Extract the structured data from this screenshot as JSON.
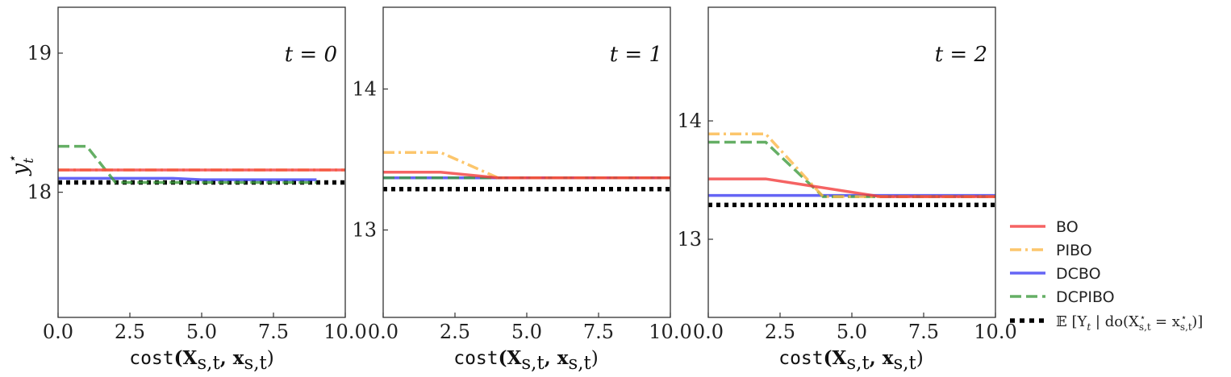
{
  "chart_data": [
    {
      "type": "line",
      "panel_label": "t = 0",
      "xlabel": "cost(X_{s,t}, x_{s,t})",
      "ylabel": "y_t^⋆",
      "xlim": [
        0,
        10
      ],
      "ylim": [
        17.1,
        19.33
      ],
      "xticks": [
        0.0,
        2.5,
        5.0,
        7.5,
        10.0
      ],
      "xtick_labels": [
        "0.0",
        "2.5",
        "5.0",
        "7.5",
        "10.0"
      ],
      "yticks": [
        18,
        19
      ],
      "ytick_labels": [
        "18",
        "19"
      ],
      "series": [
        {
          "name": "BO",
          "x": [
            0,
            10
          ],
          "y": [
            18.16,
            18.16
          ]
        },
        {
          "name": "PIBO",
          "x": [
            0,
            10
          ],
          "y": [
            18.16,
            18.16
          ]
        },
        {
          "name": "DCBO",
          "x": [
            0,
            4,
            5,
            9
          ],
          "y": [
            18.1,
            18.1,
            18.09,
            18.09
          ]
        },
        {
          "name": "DCPIBO",
          "x": [
            0,
            1,
            2,
            9
          ],
          "y": [
            18.33,
            18.33,
            18.07,
            18.07
          ]
        },
        {
          "name": "E[Y_t | do(X_{s,t}^⋆ = x_{s,t}^⋆)]",
          "x": [
            0,
            10
          ],
          "y": [
            18.07,
            18.07
          ]
        }
      ]
    },
    {
      "type": "line",
      "panel_label": "t = 1",
      "xlabel": "cost(X_{s,t}, x_{s,t})",
      "ylabel": "",
      "xlim": [
        0,
        10
      ],
      "ylim": [
        12.38,
        14.58
      ],
      "xticks": [
        0.0,
        2.5,
        5.0,
        7.5,
        10.0
      ],
      "xtick_labels": [
        "0.0",
        "2.5",
        "5.0",
        "7.5",
        "10.0"
      ],
      "yticks": [
        13,
        14
      ],
      "ytick_labels": [
        "13",
        "14"
      ],
      "series": [
        {
          "name": "BO",
          "x": [
            0,
            2,
            4,
            10
          ],
          "y": [
            13.41,
            13.41,
            13.37,
            13.37
          ]
        },
        {
          "name": "PIBO",
          "x": [
            0,
            2,
            4,
            10
          ],
          "y": [
            13.55,
            13.55,
            13.37,
            13.37
          ]
        },
        {
          "name": "DCBO",
          "x": [
            0,
            10
          ],
          "y": [
            13.37,
            13.37
          ]
        },
        {
          "name": "DCPIBO",
          "x": [
            0,
            10
          ],
          "y": [
            13.37,
            13.37
          ]
        },
        {
          "name": "E[Y_t | do(X_{s,t}^⋆ = x_{s,t}^⋆)]",
          "x": [
            0,
            10
          ],
          "y": [
            13.29,
            13.29
          ]
        }
      ]
    },
    {
      "type": "line",
      "panel_label": "t = 2",
      "xlabel": "cost(X_{s,t}, x_{s,t})",
      "ylabel": "",
      "xlim": [
        0,
        10
      ],
      "ylim": [
        12.34,
        14.96
      ],
      "xticks": [
        0.0,
        2.5,
        5.0,
        7.5,
        10.0
      ],
      "xtick_labels": [
        "0.0",
        "2.5",
        "5.0",
        "7.5",
        "10.0"
      ],
      "yticks": [
        13,
        14
      ],
      "ytick_labels": [
        "13",
        "14"
      ],
      "series": [
        {
          "name": "BO",
          "x": [
            0,
            2,
            6,
            10
          ],
          "y": [
            13.51,
            13.51,
            13.36,
            13.36
          ]
        },
        {
          "name": "PIBO",
          "x": [
            0,
            2,
            4,
            10
          ],
          "y": [
            13.89,
            13.89,
            13.36,
            13.36
          ]
        },
        {
          "name": "DCBO",
          "x": [
            0,
            10
          ],
          "y": [
            13.37,
            13.37
          ]
        },
        {
          "name": "DCPIBO",
          "x": [
            0,
            2,
            4,
            10
          ],
          "y": [
            13.82,
            13.82,
            13.36,
            13.36
          ]
        },
        {
          "name": "E[Y_t | do(X_{s,t}^⋆ = x_{s,t}^⋆)]",
          "x": [
            0,
            10
          ],
          "y": [
            13.29,
            13.29
          ]
        }
      ]
    }
  ],
  "series_styles": {
    "BO": {
      "color": "#f23c3c",
      "dash": "solid"
    },
    "PIBO": {
      "color": "#fbb847",
      "dash": "dashdot"
    },
    "DCBO": {
      "color": "#3e3ef2",
      "dash": "solid"
    },
    "DCPIBO": {
      "color": "#3e9b3e",
      "dash": "dashed"
    },
    "E[Y_t | do(X_{s,t}^⋆ = x_{s,t}^⋆)]": {
      "color": "#000000",
      "dash": "dotted"
    }
  },
  "legend": {
    "placement": "right",
    "entries": [
      "BO",
      "PIBO",
      "DCBO",
      "DCPIBO",
      "E[Y_t | do(X_{s,t}^⋆ = x_{s,t}^⋆)]"
    ]
  },
  "text": {
    "xlabel_prefix": "cost",
    "xlabel_args": "(X",
    "xlabel_sub1": "s,t",
    "xlabel_mid": ", x",
    "xlabel_sub2": "s,t",
    "xlabel_close": ")",
    "ylabel_main": "y",
    "ylabel_sub": "t",
    "ylabel_sup": "⋆",
    "legend_bo": "BO",
    "legend_pibo": "PIBO",
    "legend_dcbo": "DCBO",
    "legend_dcpibo": "DCPIBO",
    "legend_expect_main": "𝔼 [Y",
    "legend_expect_t": "t",
    "legend_expect_do": " | do(X",
    "legend_expect_sub1": "s,t",
    "legend_expect_sup1": "⋆",
    "legend_expect_eq": " = x",
    "legend_expect_sub2": "s,t",
    "legend_expect_sup2": "⋆",
    "legend_expect_close": ")]"
  }
}
